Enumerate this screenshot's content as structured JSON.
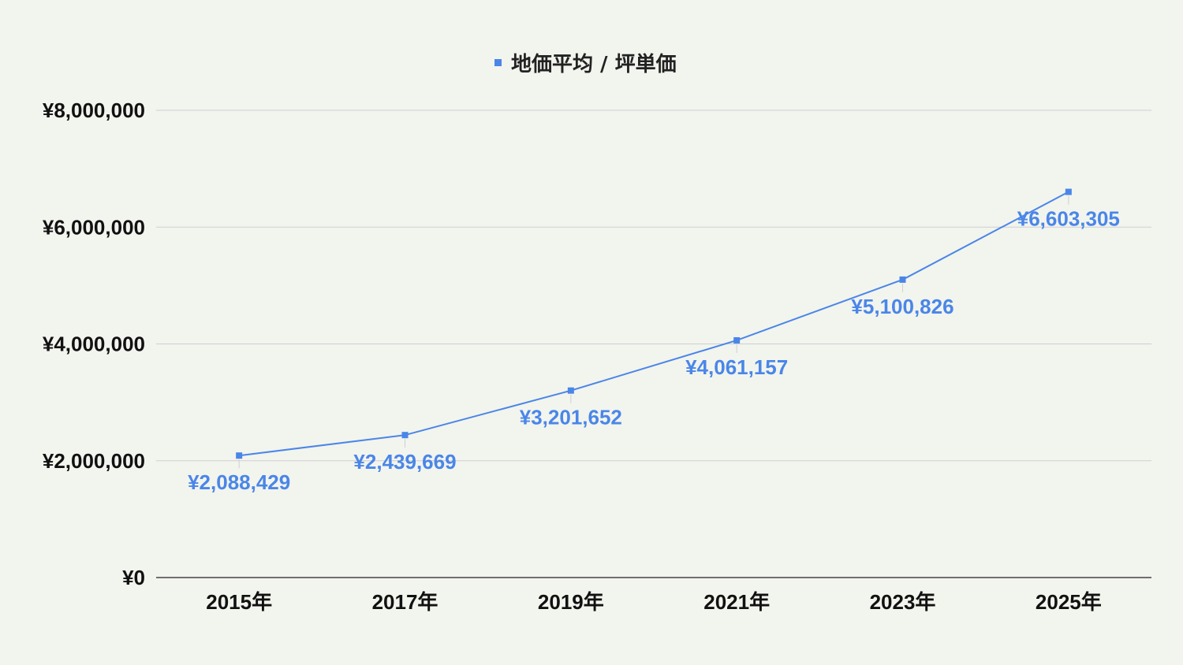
{
  "chart_data": {
    "type": "line",
    "categories": [
      "2015年",
      "2017年",
      "2019年",
      "2021年",
      "2023年",
      "2025年"
    ],
    "series": [
      {
        "name": "地価平均 / 坪単価",
        "values": [
          2088429,
          2439669,
          3201652,
          4061157,
          5100826,
          6603305
        ],
        "labels": [
          "¥2,088,429",
          "¥2,439,669",
          "¥3,201,652",
          "¥4,061,157",
          "¥5,100,826",
          "¥6,603,305"
        ],
        "color": "#4a86e8"
      }
    ],
    "y_ticks": [
      {
        "value": 0,
        "label": "¥0"
      },
      {
        "value": 2000000,
        "label": "¥2,000,000"
      },
      {
        "value": 4000000,
        "label": "¥4,000,000"
      },
      {
        "value": 6000000,
        "label": "¥6,000,000"
      },
      {
        "value": 8000000,
        "label": "¥8,000,000"
      }
    ],
    "ylim": [
      0,
      8000000
    ],
    "grid": true,
    "legend_position": "top-center",
    "colors": {
      "background": "#f2f4ee",
      "gridline": "#d0d0d0",
      "axis": "#444444",
      "series": "#4a86e8",
      "text": "#111111"
    }
  }
}
